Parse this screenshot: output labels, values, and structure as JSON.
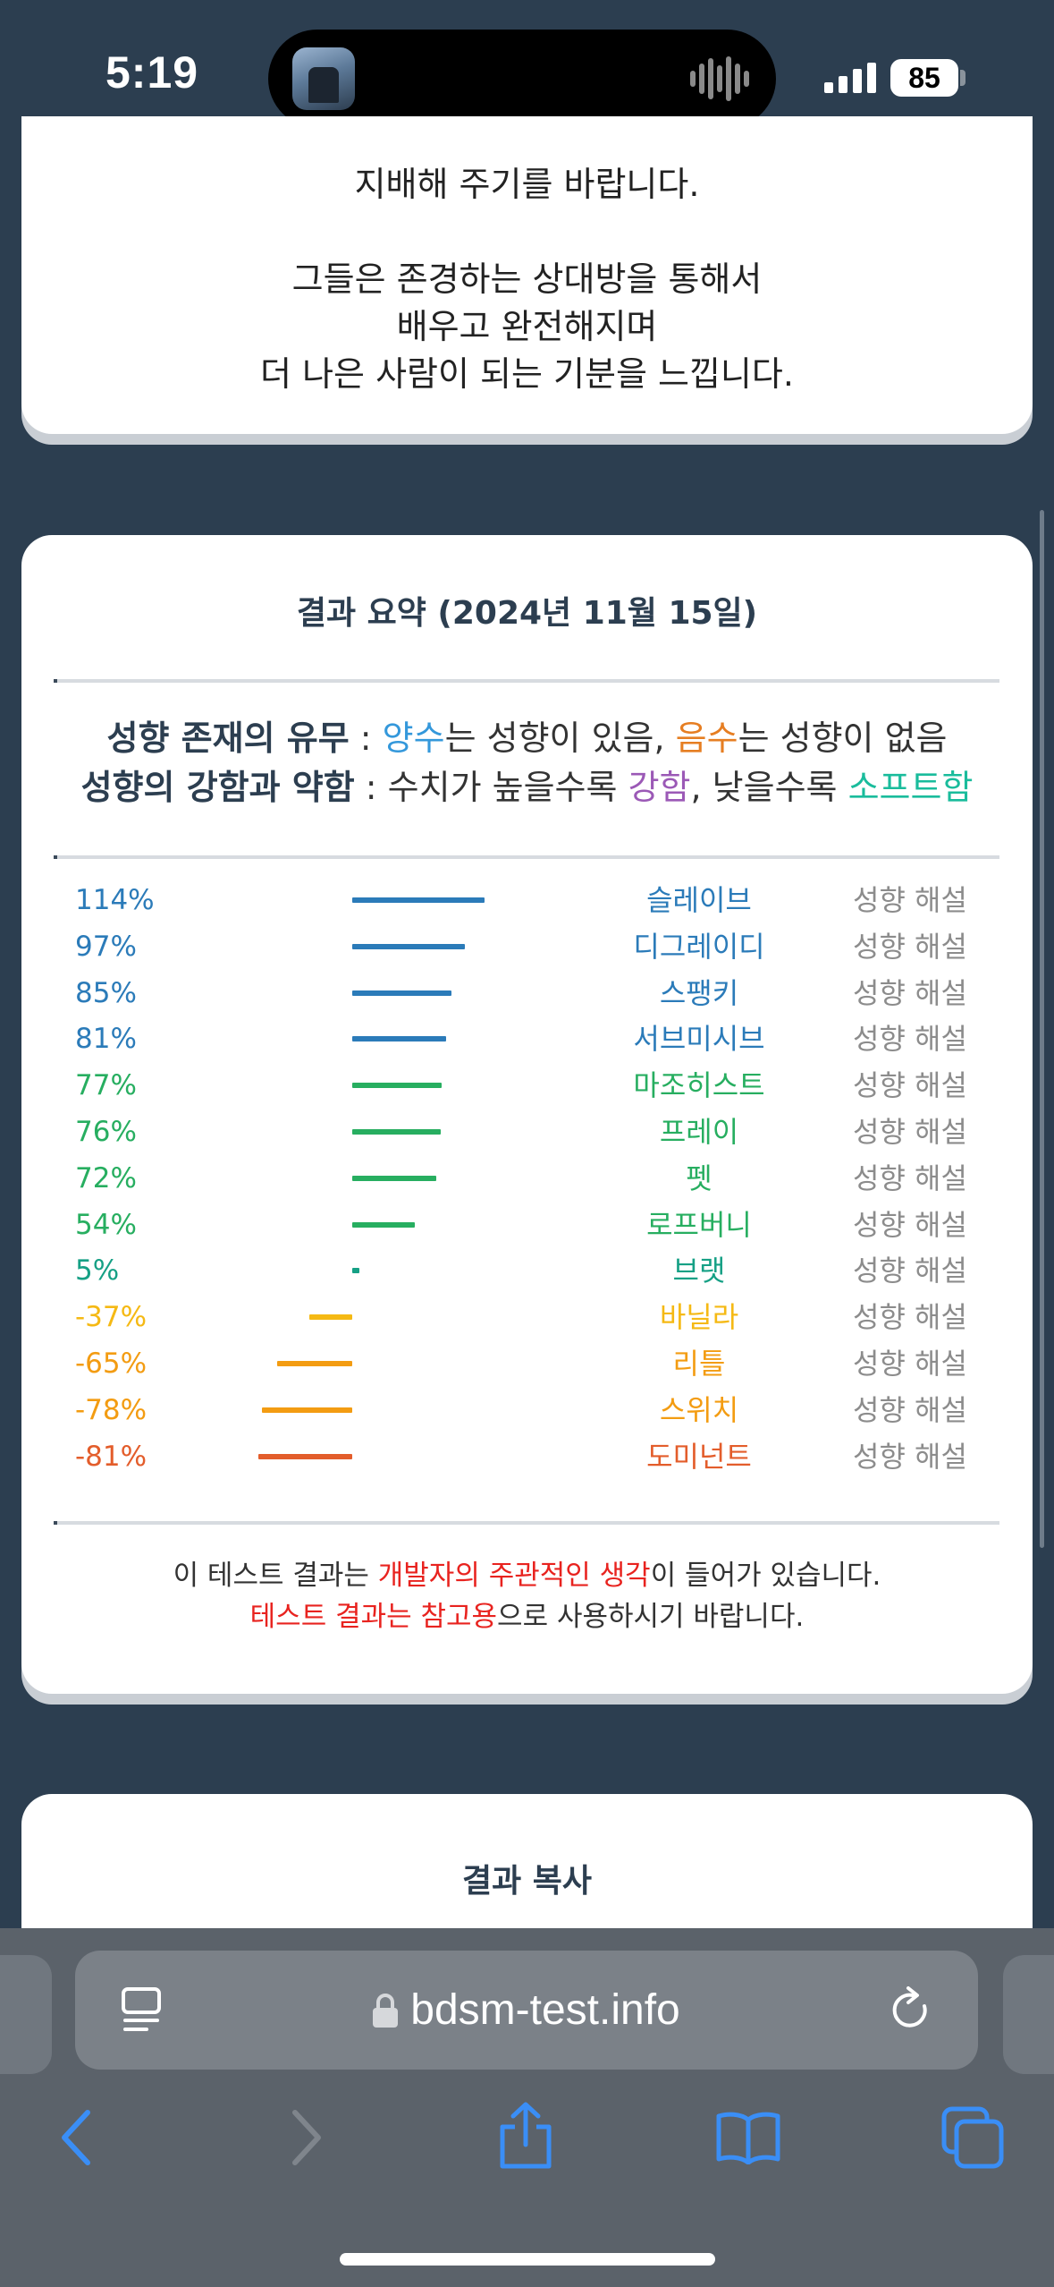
{
  "status_bar": {
    "time": "5:19",
    "battery": "85"
  },
  "top_card": {
    "lines": [
      "지배해 주기를 바랍니다.",
      "",
      "그들은 존경하는 상대방을 통해서",
      "배우고 완전해지며",
      "더 나은 사람이 되는 기분을 느낍니다."
    ]
  },
  "summary": {
    "title": "결과 요약 (2024년 11월 15일)",
    "legend": {
      "line1": {
        "label": "성향 존재의 유무",
        "sep": " : ",
        "positive": "양수",
        "t1": "는 성향이 있음, ",
        "negative": "음수",
        "t2": "는 성향이 없음"
      },
      "line2": {
        "label": "성향의 강함과 약함",
        "sep": " : 수치가 높을수록 ",
        "strong": "강함",
        "t1": ", 낮을수록 ",
        "soft": "소프트함"
      }
    },
    "link_label": "성향 해설",
    "results": [
      {
        "pct": "114%",
        "value": 114,
        "name": "슬레이브",
        "color": "#2b7bb9"
      },
      {
        "pct": "97%",
        "value": 97,
        "name": "디그레이디",
        "color": "#2b7bb9"
      },
      {
        "pct": "85%",
        "value": 85,
        "name": "스팽키",
        "color": "#2b7bb9"
      },
      {
        "pct": "81%",
        "value": 81,
        "name": "서브미시브",
        "color": "#2b7bb9"
      },
      {
        "pct": "77%",
        "value": 77,
        "name": "마조히스트",
        "color": "#27ae60"
      },
      {
        "pct": "76%",
        "value": 76,
        "name": "프레이",
        "color": "#27ae60"
      },
      {
        "pct": "72%",
        "value": 72,
        "name": "펫",
        "color": "#27ae60"
      },
      {
        "pct": "54%",
        "value": 54,
        "name": "로프버니",
        "color": "#27ae60"
      },
      {
        "pct": "5%",
        "value": 5,
        "name": "브랫",
        "color": "#16a085"
      },
      {
        "pct": "-37%",
        "value": -37,
        "name": "바닐라",
        "color": "#f5b914"
      },
      {
        "pct": "-65%",
        "value": -65,
        "name": "리틀",
        "color": "#f39c12"
      },
      {
        "pct": "-78%",
        "value": -78,
        "name": "스위치",
        "color": "#f39c12"
      },
      {
        "pct": "-81%",
        "value": -81,
        "name": "도미넌트",
        "color": "#e35d2b"
      }
    ],
    "disclaimer": {
      "l1a": "이 테스트 결과는 ",
      "l1red": "개발자의 주관적인 생각",
      "l1b": "이 들어가 있습니다.",
      "l2red": "테스트 결과는 참고용",
      "l2b": "으로 사용하시기 바랍니다."
    }
  },
  "copy_card": {
    "title": "결과 복사"
  },
  "browser": {
    "url": "bdsm-test.info"
  },
  "colors": {
    "positive": "#3498db",
    "negative": "#e67e22",
    "strong": "#9b59b6",
    "soft": "#1abc9c"
  }
}
